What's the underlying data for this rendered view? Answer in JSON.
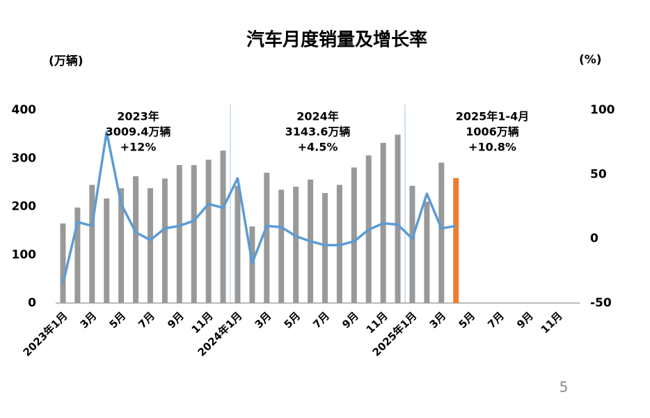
{
  "chart_data": {
    "type": "bar_line",
    "title": "汽车月度销量及增长率",
    "y_label": "(万辆)",
    "y2_label": "(%)",
    "page_number": "5",
    "categories": [
      "2023年1月",
      null,
      "3月",
      null,
      "5月",
      null,
      "7月",
      null,
      "9月",
      null,
      "11月",
      null,
      "2024年1月",
      null,
      "3月",
      null,
      "5月",
      null,
      "7月",
      null,
      "9月",
      null,
      "11月",
      null,
      "2025年1月",
      null,
      "3月",
      null,
      "5月",
      null,
      "7月",
      null,
      "9月",
      null,
      "11月",
      null
    ],
    "series": [
      {
        "type": "bar",
        "axis": "y",
        "color": "#999999",
        "colors": [
          "#999999",
          "#999999",
          "#999999",
          "#999999",
          "#999999",
          "#999999",
          "#999999",
          "#999999",
          "#999999",
          "#999999",
          "#999999",
          "#999999",
          "#999999",
          "#999999",
          "#999999",
          "#999999",
          "#999999",
          "#999999",
          "#999999",
          "#999999",
          "#999999",
          "#999999",
          "#999999",
          "#999999",
          "#999999",
          "#999999",
          "#999999",
          "#ed7d31",
          null,
          null,
          null,
          null,
          null,
          null,
          null,
          null
        ],
        "values": [
          165,
          198,
          245,
          217,
          238,
          263,
          238,
          258,
          286,
          286,
          297,
          316,
          243,
          159,
          270,
          235,
          241,
          256,
          228,
          245,
          281,
          306,
          332,
          349,
          243,
          210,
          291,
          259,
          null,
          null,
          null,
          null,
          null,
          null,
          null,
          null
        ]
      },
      {
        "type": "line",
        "axis": "y2",
        "color": "#5b9bd5",
        "values": [
          -35,
          13,
          10,
          83,
          27,
          5,
          -1,
          8,
          10,
          14,
          27,
          24,
          47,
          -19,
          10,
          9,
          2,
          -2,
          -5,
          -5,
          -2,
          7,
          12,
          11,
          0,
          35,
          8,
          10,
          null,
          null,
          null,
          null,
          null,
          null,
          null,
          null
        ]
      }
    ],
    "ylim": [
      0,
      400
    ],
    "yticks": [
      0,
      100,
      200,
      300,
      400
    ],
    "y2lim": [
      -50,
      100
    ],
    "y2ticks": [
      -50,
      0,
      50,
      100
    ],
    "annotations": [
      [
        "2023年",
        "3009.4万辆",
        "+12%"
      ],
      [
        "2024年",
        "3143.6万辆",
        "+4.5%"
      ],
      [
        "2025年1-4月",
        "1006万辆",
        "+10.8%"
      ]
    ]
  }
}
